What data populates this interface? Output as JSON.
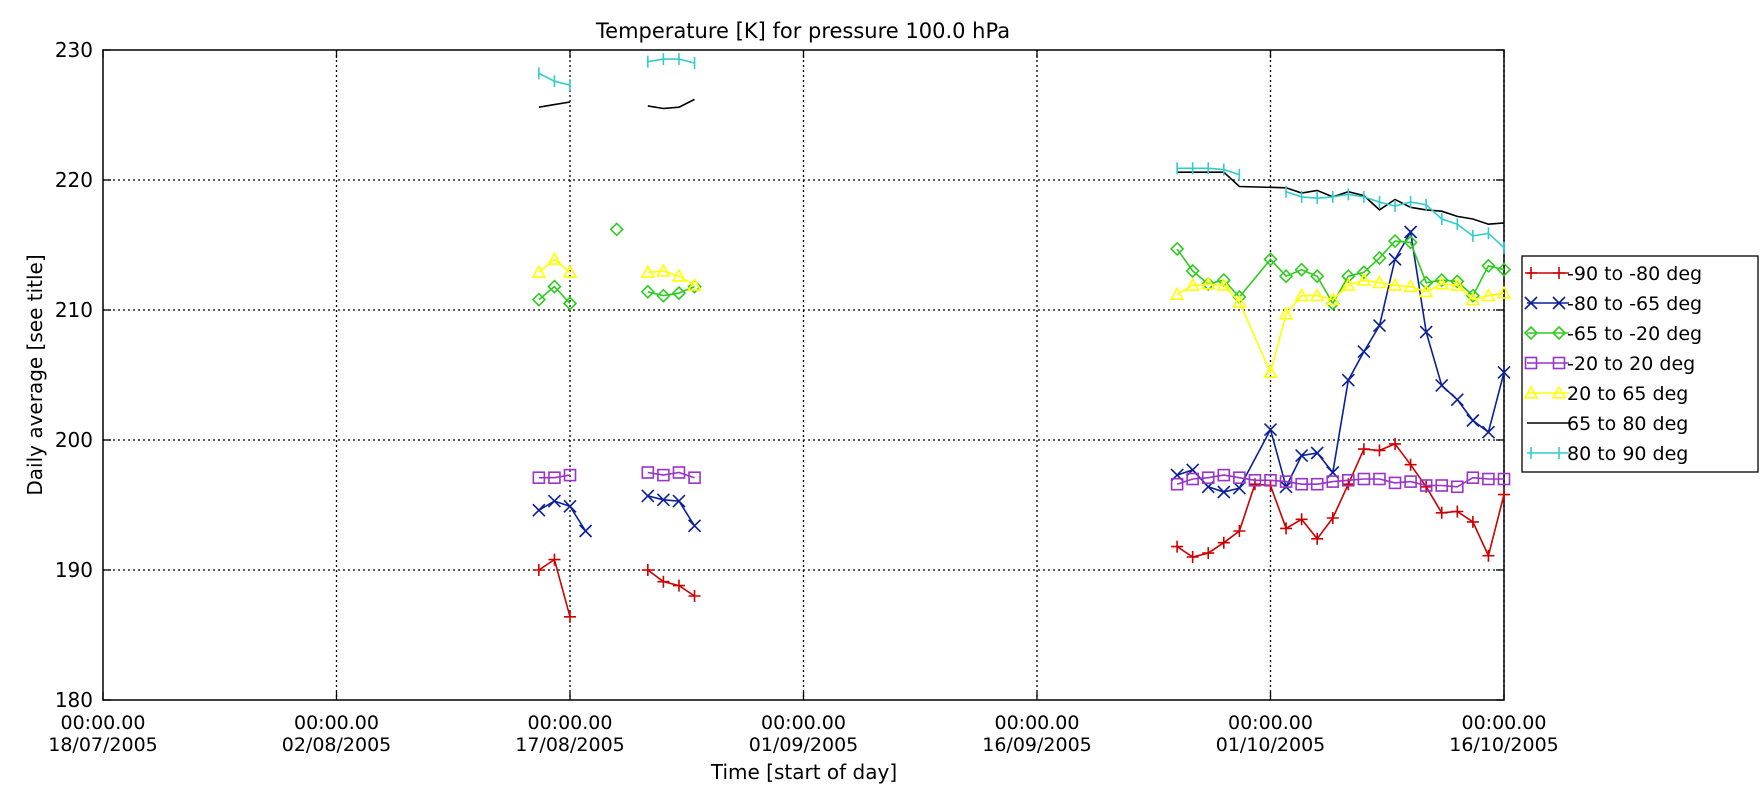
{
  "chart_data": {
    "type": "line",
    "title": "Temperature [K] for pressure 100.0 hPa",
    "xlabel": "Time [start of day]",
    "ylabel": "Daily average [see title]",
    "ylim": [
      180,
      230
    ],
    "yticks": [
      180,
      190,
      200,
      210,
      220,
      230
    ],
    "xlim": [
      "2005-07-18",
      "2005-10-16"
    ],
    "xticks": [
      {
        "date": "2005-07-18",
        "time": "00:00.00",
        "label": "18/07/2005"
      },
      {
        "date": "2005-08-02",
        "time": "00:00.00",
        "label": "02/08/2005"
      },
      {
        "date": "2005-08-17",
        "time": "00:00.00",
        "label": "17/08/2005"
      },
      {
        "date": "2005-09-01",
        "time": "00:00.00",
        "label": "01/09/2005"
      },
      {
        "date": "2005-09-16",
        "time": "00:00.00",
        "label": "16/09/2005"
      },
      {
        "date": "2005-10-01",
        "time": "00:00.00",
        "label": "01/10/2005"
      },
      {
        "date": "2005-10-16",
        "time": "00:00.00",
        "label": "16/10/2005"
      }
    ],
    "grid": true,
    "legend_position": "right",
    "series": [
      {
        "name": "-90 to -80 deg",
        "color": "#cc0000",
        "marker": "plus",
        "segments": [
          [
            [
              "2005-08-15",
              190.0
            ],
            [
              "2005-08-16",
              190.8
            ],
            [
              "2005-08-17",
              186.4
            ]
          ],
          [
            [
              "2005-08-22",
              190.0
            ],
            [
              "2005-08-23",
              189.1
            ],
            [
              "2005-08-24",
              188.8
            ],
            [
              "2005-08-25",
              188.0
            ]
          ],
          [
            [
              "2005-09-25",
              191.8
            ],
            [
              "2005-09-26",
              191.0
            ],
            [
              "2005-09-27",
              191.3
            ],
            [
              "2005-09-28",
              192.1
            ],
            [
              "2005-09-29",
              193.0
            ],
            [
              "2005-09-30",
              196.6
            ],
            [
              "2005-10-01",
              196.5
            ],
            [
              "2005-10-02",
              193.2
            ],
            [
              "2005-10-03",
              193.9
            ],
            [
              "2005-10-04",
              192.4
            ],
            [
              "2005-10-05",
              194.0
            ],
            [
              "2005-10-06",
              196.6
            ],
            [
              "2005-10-07",
              199.3
            ],
            [
              "2005-10-08",
              199.2
            ],
            [
              "2005-10-09",
              199.7
            ],
            [
              "2005-10-10",
              198.1
            ],
            [
              "2005-10-11",
              196.4
            ],
            [
              "2005-10-12",
              194.4
            ],
            [
              "2005-10-13",
              194.5
            ],
            [
              "2005-10-14",
              193.7
            ],
            [
              "2005-10-15",
              191.1
            ],
            [
              "2005-10-16",
              195.8
            ]
          ]
        ]
      },
      {
        "name": "-80 to -65 deg",
        "color": "#0a1f99",
        "marker": "x",
        "segments": [
          [
            [
              "2005-08-15",
              194.6
            ],
            [
              "2005-08-16",
              195.3
            ],
            [
              "2005-08-17",
              194.9
            ],
            [
              "2005-08-18",
              193.0
            ]
          ],
          [
            [
              "2005-08-22",
              195.7
            ],
            [
              "2005-08-23",
              195.4
            ],
            [
              "2005-08-24",
              195.3
            ],
            [
              "2005-08-25",
              193.4
            ]
          ],
          [
            [
              "2005-09-25",
              197.3
            ],
            [
              "2005-09-26",
              197.7
            ],
            [
              "2005-09-27",
              196.4
            ],
            [
              "2005-09-28",
              196.0
            ],
            [
              "2005-09-29",
              196.3
            ],
            [
              "2005-10-01",
              200.8
            ],
            [
              "2005-10-02",
              196.4
            ],
            [
              "2005-10-03",
              198.8
            ],
            [
              "2005-10-04",
              199.0
            ],
            [
              "2005-10-05",
              197.5
            ],
            [
              "2005-10-06",
              204.6
            ],
            [
              "2005-10-07",
              206.8
            ],
            [
              "2005-10-08",
              208.8
            ],
            [
              "2005-10-09",
              213.9
            ],
            [
              "2005-10-10",
              216.0
            ],
            [
              "2005-10-11",
              208.3
            ],
            [
              "2005-10-12",
              204.2
            ],
            [
              "2005-10-13",
              203.1
            ],
            [
              "2005-10-14",
              201.5
            ],
            [
              "2005-10-15",
              200.6
            ],
            [
              "2005-10-16",
              205.2
            ]
          ]
        ]
      },
      {
        "name": "-65 to -20 deg",
        "color": "#2ecc1f",
        "marker": "diamond",
        "segments": [
          [
            [
              "2005-08-15",
              210.8
            ],
            [
              "2005-08-16",
              211.8
            ],
            [
              "2005-08-17",
              210.5
            ]
          ],
          [
            [
              "2005-08-20",
              216.2
            ]
          ],
          [
            [
              "2005-08-22",
              211.4
            ],
            [
              "2005-08-23",
              211.1
            ],
            [
              "2005-08-24",
              211.3
            ],
            [
              "2005-08-25",
              211.8
            ]
          ],
          [
            [
              "2005-09-25",
              214.7
            ],
            [
              "2005-09-26",
              213.0
            ],
            [
              "2005-09-27",
              212.0
            ],
            [
              "2005-09-28",
              212.3
            ],
            [
              "2005-09-29",
              211.0
            ],
            [
              "2005-10-01",
              213.9
            ],
            [
              "2005-10-02",
              212.6
            ],
            [
              "2005-10-03",
              213.1
            ],
            [
              "2005-10-04",
              212.6
            ],
            [
              "2005-10-05",
              210.5
            ],
            [
              "2005-10-06",
              212.6
            ],
            [
              "2005-10-07",
              212.9
            ],
            [
              "2005-10-08",
              214.0
            ],
            [
              "2005-10-09",
              215.3
            ],
            [
              "2005-10-10",
              215.2
            ],
            [
              "2005-10-11",
              212.1
            ],
            [
              "2005-10-12",
              212.3
            ],
            [
              "2005-10-13",
              212.2
            ],
            [
              "2005-10-14",
              211.1
            ],
            [
              "2005-10-15",
              213.4
            ],
            [
              "2005-10-16",
              213.1
            ]
          ]
        ]
      },
      {
        "name": "-20 to 20 deg",
        "color": "#9933cc",
        "marker": "square",
        "segments": [
          [
            [
              "2005-08-15",
              197.1
            ],
            [
              "2005-08-16",
              197.1
            ],
            [
              "2005-08-17",
              197.3
            ]
          ],
          [
            [
              "2005-08-22",
              197.5
            ],
            [
              "2005-08-23",
              197.3
            ],
            [
              "2005-08-24",
              197.5
            ],
            [
              "2005-08-25",
              197.1
            ]
          ],
          [
            [
              "2005-09-25",
              196.6
            ],
            [
              "2005-09-26",
              197.0
            ],
            [
              "2005-09-27",
              197.1
            ],
            [
              "2005-09-28",
              197.3
            ],
            [
              "2005-09-29",
              197.1
            ],
            [
              "2005-09-30",
              196.9
            ],
            [
              "2005-10-01",
              196.9
            ],
            [
              "2005-10-02",
              196.8
            ],
            [
              "2005-10-03",
              196.6
            ],
            [
              "2005-10-04",
              196.6
            ],
            [
              "2005-10-05",
              196.8
            ],
            [
              "2005-10-06",
              196.9
            ],
            [
              "2005-10-07",
              197.0
            ],
            [
              "2005-10-08",
              197.0
            ],
            [
              "2005-10-09",
              196.7
            ],
            [
              "2005-10-10",
              196.8
            ],
            [
              "2005-10-11",
              196.5
            ],
            [
              "2005-10-12",
              196.5
            ],
            [
              "2005-10-13",
              196.4
            ],
            [
              "2005-10-14",
              197.1
            ],
            [
              "2005-10-15",
              197.0
            ],
            [
              "2005-10-16",
              197.0
            ]
          ]
        ]
      },
      {
        "name": "20 to 65 deg",
        "color": "#ffff00",
        "marker": "triangle",
        "segments": [
          [
            [
              "2005-08-15",
              212.9
            ],
            [
              "2005-08-16",
              213.9
            ],
            [
              "2005-08-17",
              212.9
            ]
          ],
          [
            [
              "2005-08-22",
              212.9
            ],
            [
              "2005-08-23",
              213.0
            ],
            [
              "2005-08-24",
              212.6
            ],
            [
              "2005-08-25",
              211.9
            ]
          ],
          [
            [
              "2005-09-25",
              211.2
            ],
            [
              "2005-09-26",
              211.9
            ],
            [
              "2005-09-27",
              212.0
            ],
            [
              "2005-09-28",
              211.9
            ],
            [
              "2005-09-29",
              210.6
            ],
            [
              "2005-10-01",
              205.2
            ],
            [
              "2005-10-02",
              209.7
            ],
            [
              "2005-10-03",
              211.1
            ],
            [
              "2005-10-04",
              211.1
            ],
            [
              "2005-10-05",
              210.8
            ],
            [
              "2005-10-06",
              211.9
            ],
            [
              "2005-10-07",
              212.3
            ],
            [
              "2005-10-08",
              212.1
            ],
            [
              "2005-10-09",
              211.9
            ],
            [
              "2005-10-10",
              211.8
            ],
            [
              "2005-10-11",
              211.4
            ],
            [
              "2005-10-12",
              212.0
            ],
            [
              "2005-10-13",
              211.9
            ],
            [
              "2005-10-14",
              210.8
            ],
            [
              "2005-10-15",
              211.1
            ],
            [
              "2005-10-16",
              211.3
            ]
          ]
        ]
      },
      {
        "name": "65 to 80 deg",
        "color": "#000000",
        "marker": "none",
        "segments": [
          [
            [
              "2005-08-15",
              225.6
            ],
            [
              "2005-08-16",
              225.8
            ],
            [
              "2005-08-17",
              226.0
            ]
          ],
          [
            [
              "2005-08-22",
              225.7
            ],
            [
              "2005-08-23",
              225.5
            ],
            [
              "2005-08-24",
              225.6
            ],
            [
              "2005-08-25",
              226.2
            ]
          ],
          [
            [
              "2005-09-25",
              220.6
            ],
            [
              "2005-09-26",
              220.6
            ],
            [
              "2005-09-27",
              220.6
            ],
            [
              "2005-09-28",
              220.6
            ],
            [
              "2005-09-29",
              219.5
            ],
            [
              "2005-10-02",
              219.4
            ],
            [
              "2005-10-03",
              219.0
            ],
            [
              "2005-10-04",
              219.2
            ],
            [
              "2005-10-05",
              218.7
            ],
            [
              "2005-10-06",
              219.1
            ],
            [
              "2005-10-07",
              218.8
            ],
            [
              "2005-10-08",
              217.7
            ],
            [
              "2005-10-09",
              218.5
            ],
            [
              "2005-10-10",
              217.9
            ],
            [
              "2005-10-11",
              217.7
            ],
            [
              "2005-10-12",
              217.6
            ],
            [
              "2005-10-13",
              217.2
            ],
            [
              "2005-10-14",
              217.0
            ],
            [
              "2005-10-15",
              216.6
            ],
            [
              "2005-10-16",
              216.7
            ]
          ]
        ]
      },
      {
        "name": "80 to 90 deg",
        "color": "#33cccc",
        "marker": "bar",
        "segments": [
          [
            [
              "2005-08-15",
              228.2
            ],
            [
              "2005-08-16",
              227.6
            ],
            [
              "2005-08-17",
              227.3
            ]
          ],
          [
            [
              "2005-08-22",
              229.1
            ],
            [
              "2005-08-23",
              229.3
            ],
            [
              "2005-08-24",
              229.3
            ],
            [
              "2005-08-25",
              229.0
            ]
          ],
          [
            [
              "2005-09-25",
              220.9
            ],
            [
              "2005-09-26",
              220.9
            ],
            [
              "2005-09-27",
              220.9
            ],
            [
              "2005-09-28",
              220.8
            ],
            [
              "2005-09-29",
              220.4
            ]
          ],
          [
            [
              "2005-10-02",
              219.1
            ],
            [
              "2005-10-03",
              218.7
            ],
            [
              "2005-10-04",
              218.6
            ],
            [
              "2005-10-05",
              218.7
            ],
            [
              "2005-10-06",
              218.9
            ],
            [
              "2005-10-07",
              218.7
            ],
            [
              "2005-10-08",
              218.3
            ],
            [
              "2005-10-09",
              218.0
            ],
            [
              "2005-10-10",
              218.3
            ],
            [
              "2005-10-11",
              218.1
            ],
            [
              "2005-10-12",
              217.0
            ],
            [
              "2005-10-13",
              216.6
            ],
            [
              "2005-10-14",
              215.7
            ],
            [
              "2005-10-15",
              215.9
            ],
            [
              "2005-10-16",
              214.8
            ]
          ]
        ]
      }
    ]
  }
}
